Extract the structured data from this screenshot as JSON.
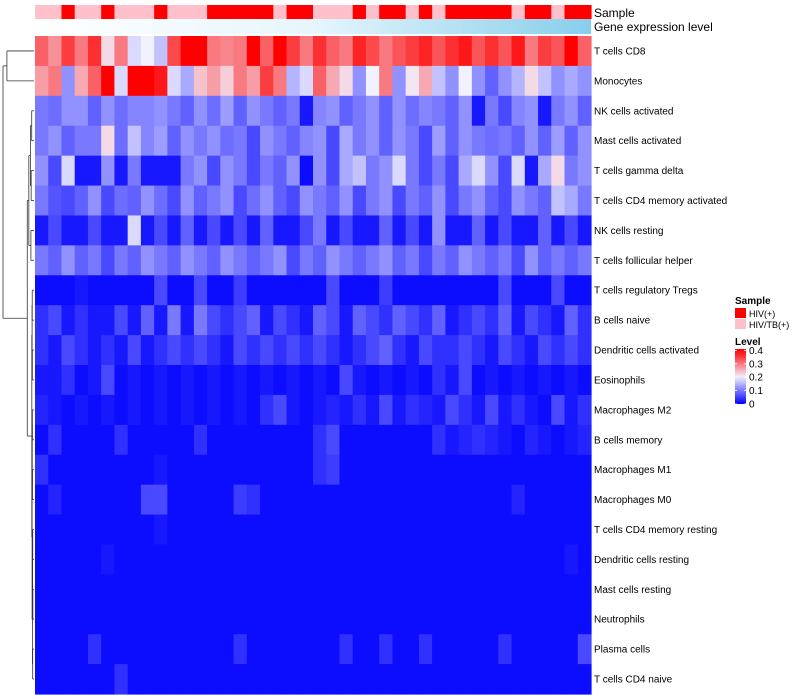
{
  "chart_data": {
    "type": "heatmap",
    "title": "",
    "annotation_labels": [
      "Sample",
      "Gene expression level"
    ],
    "rows": [
      "T cells CD8",
      "Monocytes",
      "NK cells activated",
      "Mast cells activated",
      "T cells gamma delta",
      "T cells CD4 memory activated",
      "NK cells resting",
      "T cells follicular helper",
      "T cells regulatory  Tregs",
      "B cells naive",
      "Dendritic cells activated",
      "Eosinophils",
      "Macrophages M2",
      "B cells memory",
      "Macrophages M1",
      "Macrophages M0",
      "T cells CD4 memory resting",
      "Dendritic cells resting",
      "Mast cells resting",
      "Neutrophils",
      "Plasma cells",
      "T cells CD4 naive"
    ],
    "n_columns": 42,
    "sample_groups": [
      "HIV/TB(+)",
      "HIV/TB(+)",
      "HIV(+)",
      "HIV/TB(+)",
      "HIV/TB(+)",
      "HIV(+)",
      "HIV/TB(+)",
      "HIV/TB(+)",
      "HIV/TB(+)",
      "HIV(+)",
      "HIV/TB(+)",
      "HIV/TB(+)",
      "HIV/TB(+)",
      "HIV(+)",
      "HIV(+)",
      "HIV(+)",
      "HIV(+)",
      "HIV(+)",
      "HIV/TB(+)",
      "HIV(+)",
      "HIV(+)",
      "HIV/TB(+)",
      "HIV/TB(+)",
      "HIV/TB(+)",
      "HIV(+)",
      "HIV/TB(+)",
      "HIV(+)",
      "HIV(+)",
      "HIV/TB(+)",
      "HIV(+)",
      "HIV/TB(+)",
      "HIV(+)",
      "HIV(+)",
      "HIV(+)",
      "HIV(+)",
      "HIV(+)",
      "HIV/TB(+)",
      "HIV(+)",
      "HIV(+)",
      "HIV/TB(+)",
      "HIV(+)",
      "HIV(+)"
    ],
    "expression_gradient": [
      "#ffffff",
      "#e6f6fc",
      "#87ceeb"
    ],
    "values": [
      [
        0.32,
        0.28,
        0.35,
        0.3,
        0.36,
        0.22,
        0.3,
        0.18,
        0.2,
        0.16,
        0.34,
        0.4,
        0.4,
        0.3,
        0.29,
        0.3,
        0.4,
        0.32,
        0.4,
        0.35,
        0.3,
        0.36,
        0.32,
        0.3,
        0.37,
        0.34,
        0.3,
        0.33,
        0.35,
        0.37,
        0.33,
        0.36,
        0.38,
        0.33,
        0.36,
        0.33,
        0.38,
        0.3,
        0.35,
        0.33,
        0.4,
        0.32
      ],
      [
        0.27,
        0.3,
        0.12,
        0.26,
        0.32,
        0.4,
        0.18,
        0.4,
        0.4,
        0.38,
        0.18,
        0.14,
        0.24,
        0.27,
        0.23,
        0.3,
        0.27,
        0.35,
        0.3,
        0.15,
        0.18,
        0.32,
        0.26,
        0.22,
        0.12,
        0.2,
        0.3,
        0.12,
        0.21,
        0.26,
        0.16,
        0.12,
        0.2,
        0.12,
        0.08,
        0.12,
        0.15,
        0.22,
        0.16,
        0.12,
        0.14,
        0.12
      ],
      [
        0.1,
        0.09,
        0.12,
        0.12,
        0.08,
        0.12,
        0.09,
        0.11,
        0.11,
        0.12,
        0.1,
        0.08,
        0.12,
        0.09,
        0.13,
        0.08,
        0.12,
        0.1,
        0.08,
        0.1,
        0.02,
        0.11,
        0.12,
        0.08,
        0.1,
        0.12,
        0.08,
        0.12,
        0.09,
        0.11,
        0.1,
        0.08,
        0.12,
        0.02,
        0.1,
        0.06,
        0.11,
        0.12,
        0.02,
        0.1,
        0.12,
        0.08
      ],
      [
        0.1,
        0.12,
        0.08,
        0.1,
        0.1,
        0.22,
        0.09,
        0.16,
        0.11,
        0.13,
        0.08,
        0.12,
        0.1,
        0.12,
        0.09,
        0.1,
        0.06,
        0.12,
        0.1,
        0.08,
        0.11,
        0.12,
        0.06,
        0.14,
        0.1,
        0.12,
        0.08,
        0.12,
        0.1,
        0.06,
        0.13,
        0.08,
        0.12,
        0.1,
        0.09,
        0.1,
        0.08,
        0.12,
        0.08,
        0.13,
        0.08,
        0.12
      ],
      [
        0.12,
        0.06,
        0.18,
        0.02,
        0.02,
        0.12,
        0.02,
        0.1,
        0.02,
        0.02,
        0.02,
        0.1,
        0.12,
        0.06,
        0.12,
        0.1,
        0.06,
        0.1,
        0.08,
        0.12,
        0.01,
        0.12,
        0.06,
        0.14,
        0.16,
        0.1,
        0.12,
        0.18,
        0.1,
        0.06,
        0.1,
        0.06,
        0.14,
        0.18,
        0.12,
        0.06,
        0.18,
        0.02,
        0.14,
        0.22,
        0.1,
        0.12
      ],
      [
        0.1,
        0.07,
        0.06,
        0.08,
        0.12,
        0.06,
        0.09,
        0.08,
        0.12,
        0.09,
        0.06,
        0.12,
        0.08,
        0.1,
        0.12,
        0.06,
        0.09,
        0.12,
        0.08,
        0.06,
        0.12,
        0.1,
        0.08,
        0.12,
        0.06,
        0.1,
        0.12,
        0.06,
        0.1,
        0.08,
        0.12,
        0.06,
        0.1,
        0.12,
        0.08,
        0.06,
        0.12,
        0.1,
        0.08,
        0.16,
        0.14,
        0.1
      ],
      [
        0.02,
        0.06,
        0.02,
        0.02,
        0.06,
        0.02,
        0.02,
        0.18,
        0.02,
        0.06,
        0.02,
        0.08,
        0.02,
        0.06,
        0.02,
        0.06,
        0.02,
        0.08,
        0.02,
        0.02,
        0.06,
        0.1,
        0.02,
        0.06,
        0.02,
        0.02,
        0.08,
        0.02,
        0.06,
        0.02,
        0.12,
        0.02,
        0.02,
        0.08,
        0.02,
        0.06,
        0.02,
        0.02,
        0.08,
        0.02,
        0.06,
        0.02
      ],
      [
        0.1,
        0.08,
        0.12,
        0.08,
        0.1,
        0.06,
        0.1,
        0.08,
        0.12,
        0.1,
        0.08,
        0.12,
        0.1,
        0.08,
        0.12,
        0.1,
        0.08,
        0.1,
        0.12,
        0.06,
        0.1,
        0.08,
        0.12,
        0.1,
        0.08,
        0.1,
        0.12,
        0.08,
        0.1,
        0.06,
        0.1,
        0.08,
        0.12,
        0.1,
        0.08,
        0.1,
        0.06,
        0.12,
        0.08,
        0.1,
        0.08,
        0.1
      ],
      [
        0.01,
        0.01,
        0.01,
        0.02,
        0.01,
        0.01,
        0.01,
        0.01,
        0.01,
        0.06,
        0.01,
        0.01,
        0.06,
        0.01,
        0.01,
        0.05,
        0.01,
        0.01,
        0.01,
        0.01,
        0.01,
        0.01,
        0.06,
        0.01,
        0.01,
        0.01,
        0.05,
        0.01,
        0.01,
        0.01,
        0.01,
        0.01,
        0.01,
        0.01,
        0.01,
        0.06,
        0.01,
        0.01,
        0.01,
        0.06,
        0.01,
        0.01
      ],
      [
        0.04,
        0.06,
        0.02,
        0.04,
        0.02,
        0.02,
        0.06,
        0.02,
        0.08,
        0.02,
        0.1,
        0.02,
        0.1,
        0.06,
        0.04,
        0.06,
        0.08,
        0.02,
        0.06,
        0.04,
        0.02,
        0.08,
        0.06,
        0.02,
        0.08,
        0.06,
        0.04,
        0.08,
        0.06,
        0.04,
        0.08,
        0.02,
        0.04,
        0.06,
        0.04,
        0.08,
        0.02,
        0.06,
        0.04,
        0.02,
        0.08,
        0.04
      ],
      [
        0.04,
        0.02,
        0.06,
        0.04,
        0.02,
        0.04,
        0.02,
        0.06,
        0.02,
        0.04,
        0.06,
        0.04,
        0.06,
        0.04,
        0.02,
        0.06,
        0.04,
        0.06,
        0.04,
        0.06,
        0.04,
        0.06,
        0.04,
        0.02,
        0.04,
        0.06,
        0.08,
        0.04,
        0.02,
        0.06,
        0.04,
        0.04,
        0.06,
        0.04,
        0.02,
        0.06,
        0.04,
        0.02,
        0.06,
        0.04,
        0.06,
        0.04
      ],
      [
        0.02,
        0.02,
        0.04,
        0.01,
        0.02,
        0.06,
        0.01,
        0.02,
        0.01,
        0.02,
        0.01,
        0.02,
        0.01,
        0.02,
        0.01,
        0.02,
        0.01,
        0.02,
        0.01,
        0.02,
        0.01,
        0.02,
        0.01,
        0.06,
        0.02,
        0.01,
        0.02,
        0.01,
        0.02,
        0.01,
        0.04,
        0.02,
        0.06,
        0.01,
        0.02,
        0.01,
        0.02,
        0.01,
        0.02,
        0.01,
        0.02,
        0.01
      ],
      [
        0.03,
        0.02,
        0.01,
        0.02,
        0.01,
        0.02,
        0.01,
        0.02,
        0.01,
        0.02,
        0.01,
        0.02,
        0.01,
        0.02,
        0.01,
        0.02,
        0.01,
        0.04,
        0.06,
        0.02,
        0.01,
        0.02,
        0.03,
        0.02,
        0.04,
        0.02,
        0.06,
        0.02,
        0.04,
        0.03,
        0.02,
        0.06,
        0.04,
        0.02,
        0.06,
        0.02,
        0.04,
        0.02,
        0.01,
        0.06,
        0.02,
        0.04
      ],
      [
        0.01,
        0.04,
        0.01,
        0.01,
        0.01,
        0.01,
        0.04,
        0.01,
        0.01,
        0.01,
        0.01,
        0.01,
        0.04,
        0.01,
        0.01,
        0.01,
        0.01,
        0.01,
        0.01,
        0.01,
        0.01,
        0.04,
        0.06,
        0.01,
        0.01,
        0.01,
        0.01,
        0.01,
        0.01,
        0.01,
        0.04,
        0.02,
        0.03,
        0.04,
        0.03,
        0.02,
        0.01,
        0.03,
        0.02,
        0.01,
        0.02,
        0.03
      ],
      [
        0.04,
        0.01,
        0.01,
        0.01,
        0.01,
        0.01,
        0.01,
        0.01,
        0.01,
        0.02,
        0.01,
        0.01,
        0.01,
        0.01,
        0.01,
        0.01,
        0.01,
        0.01,
        0.01,
        0.01,
        0.01,
        0.04,
        0.05,
        0.01,
        0.01,
        0.01,
        0.01,
        0.01,
        0.01,
        0.01,
        0.01,
        0.01,
        0.01,
        0.01,
        0.01,
        0.01,
        0.01,
        0.01,
        0.01,
        0.01,
        0.01,
        0.01
      ],
      [
        0.01,
        0.03,
        0.01,
        0.01,
        0.01,
        0.01,
        0.01,
        0.01,
        0.06,
        0.06,
        0.01,
        0.01,
        0.01,
        0.01,
        0.01,
        0.05,
        0.04,
        0.01,
        0.01,
        0.01,
        0.01,
        0.01,
        0.01,
        0.01,
        0.01,
        0.01,
        0.01,
        0.01,
        0.01,
        0.01,
        0.01,
        0.01,
        0.01,
        0.01,
        0.01,
        0.01,
        0.03,
        0.01,
        0.01,
        0.01,
        0.01,
        0.01
      ],
      [
        0.01,
        0.01,
        0.01,
        0.01,
        0.01,
        0.01,
        0.01,
        0.01,
        0.01,
        0.02,
        0.01,
        0.01,
        0.01,
        0.01,
        0.01,
        0.01,
        0.01,
        0.01,
        0.01,
        0.01,
        0.01,
        0.01,
        0.01,
        0.01,
        0.01,
        0.01,
        0.01,
        0.01,
        0.01,
        0.01,
        0.01,
        0.01,
        0.01,
        0.01,
        0.01,
        0.01,
        0.01,
        0.01,
        0.01,
        0.01,
        0.01,
        0.01
      ],
      [
        0.01,
        0.01,
        0.01,
        0.01,
        0.01,
        0.02,
        0.01,
        0.01,
        0.01,
        0.01,
        0.01,
        0.01,
        0.01,
        0.01,
        0.01,
        0.01,
        0.01,
        0.01,
        0.01,
        0.01,
        0.01,
        0.01,
        0.01,
        0.01,
        0.01,
        0.01,
        0.01,
        0.01,
        0.01,
        0.01,
        0.01,
        0.01,
        0.01,
        0.01,
        0.01,
        0.01,
        0.01,
        0.01,
        0.01,
        0.01,
        0.02,
        0.01
      ],
      [
        0.01,
        0.01,
        0.01,
        0.01,
        0.01,
        0.01,
        0.01,
        0.01,
        0.01,
        0.01,
        0.01,
        0.01,
        0.01,
        0.01,
        0.01,
        0.01,
        0.01,
        0.01,
        0.01,
        0.01,
        0.01,
        0.01,
        0.01,
        0.01,
        0.01,
        0.01,
        0.01,
        0.01,
        0.01,
        0.01,
        0.01,
        0.01,
        0.01,
        0.01,
        0.01,
        0.01,
        0.01,
        0.01,
        0.01,
        0.01,
        0.01,
        0.01
      ],
      [
        0.01,
        0.01,
        0.01,
        0.01,
        0.01,
        0.01,
        0.01,
        0.01,
        0.01,
        0.01,
        0.01,
        0.01,
        0.01,
        0.01,
        0.01,
        0.01,
        0.01,
        0.01,
        0.01,
        0.01,
        0.01,
        0.01,
        0.01,
        0.01,
        0.01,
        0.01,
        0.01,
        0.01,
        0.01,
        0.01,
        0.01,
        0.01,
        0.01,
        0.01,
        0.01,
        0.01,
        0.01,
        0.01,
        0.01,
        0.01,
        0.01,
        0.01
      ],
      [
        0.01,
        0.01,
        0.01,
        0.01,
        0.04,
        0.01,
        0.01,
        0.01,
        0.01,
        0.01,
        0.01,
        0.01,
        0.01,
        0.01,
        0.01,
        0.04,
        0.01,
        0.01,
        0.01,
        0.01,
        0.01,
        0.01,
        0.01,
        0.04,
        0.01,
        0.01,
        0.04,
        0.01,
        0.01,
        0.04,
        0.01,
        0.01,
        0.01,
        0.01,
        0.01,
        0.04,
        0.01,
        0.01,
        0.01,
        0.01,
        0.01,
        0.06
      ],
      [
        0.01,
        0.01,
        0.01,
        0.01,
        0.01,
        0.01,
        0.04,
        0.01,
        0.01,
        0.01,
        0.01,
        0.01,
        0.01,
        0.01,
        0.01,
        0.01,
        0.01,
        0.01,
        0.01,
        0.01,
        0.01,
        0.01,
        0.01,
        0.01,
        0.01,
        0.01,
        0.01,
        0.01,
        0.01,
        0.01,
        0.01,
        0.01,
        0.01,
        0.01,
        0.01,
        0.01,
        0.01,
        0.01,
        0.01,
        0.01,
        0.01,
        0.01
      ]
    ],
    "color_scale": {
      "domain": [
        0,
        0.2,
        0.4
      ],
      "colors": [
        "#0000ff",
        "#f2f2ff",
        "#ff0000"
      ]
    },
    "legend": {
      "sample_title": "Sample",
      "sample_entries": [
        {
          "label": "HIV(+)",
          "color": "#ff0000"
        },
        {
          "label": "HIV/TB(+)",
          "color": "#ffc0cb"
        }
      ],
      "level_title": "Level",
      "level_ticks": [
        {
          "value": 0.4,
          "label": "0.4"
        },
        {
          "value": 0.3,
          "label": "0.3"
        },
        {
          "value": 0.2,
          "label": "0.2"
        },
        {
          "value": 0.1,
          "label": "0.1"
        },
        {
          "value": 0,
          "label": "0"
        }
      ],
      "level_range": [
        0,
        0.41
      ]
    },
    "dendrogram": [
      {
        "a": 0,
        "b": 1,
        "h": 1.0
      },
      {
        "a": 2,
        "b": 3,
        "h": 0.05
      },
      {
        "a": 4,
        "b": 5,
        "h": 0.07
      },
      {
        "a": "n1",
        "b": "n2",
        "h": 0.1
      },
      {
        "a": 6,
        "b": 7,
        "h": 0.08
      },
      {
        "a": "n3",
        "b": "n4",
        "h": 0.16
      },
      {
        "a": 8,
        "b": 9,
        "h": 0.03
      },
      {
        "a": 10,
        "b": 11,
        "h": 0.025
      },
      {
        "a": "n6",
        "b": "n7",
        "h": 0.035
      },
      {
        "a": 12,
        "b": 13,
        "h": 0.025
      },
      {
        "a": 14,
        "b": 15,
        "h": 0.02
      },
      {
        "a": "n9",
        "b": "n10",
        "h": 0.03
      },
      {
        "a": 16,
        "b": 17,
        "h": 0.01
      },
      {
        "a": 18,
        "b": 19,
        "h": 0.005
      },
      {
        "a": "n12",
        "b": "n13",
        "h": 0.015
      },
      {
        "a": 20,
        "b": 21,
        "h": 0.012
      },
      {
        "a": "n14",
        "b": "n15",
        "h": 0.02
      },
      {
        "a": "n11",
        "b": "n16",
        "h": 0.035
      },
      {
        "a": "n8",
        "b": "n17",
        "h": 0.045
      },
      {
        "a": "n5",
        "b": "n18",
        "h": 0.22
      },
      {
        "a": "n0",
        "b": "n19",
        "h": 1.15
      }
    ]
  }
}
